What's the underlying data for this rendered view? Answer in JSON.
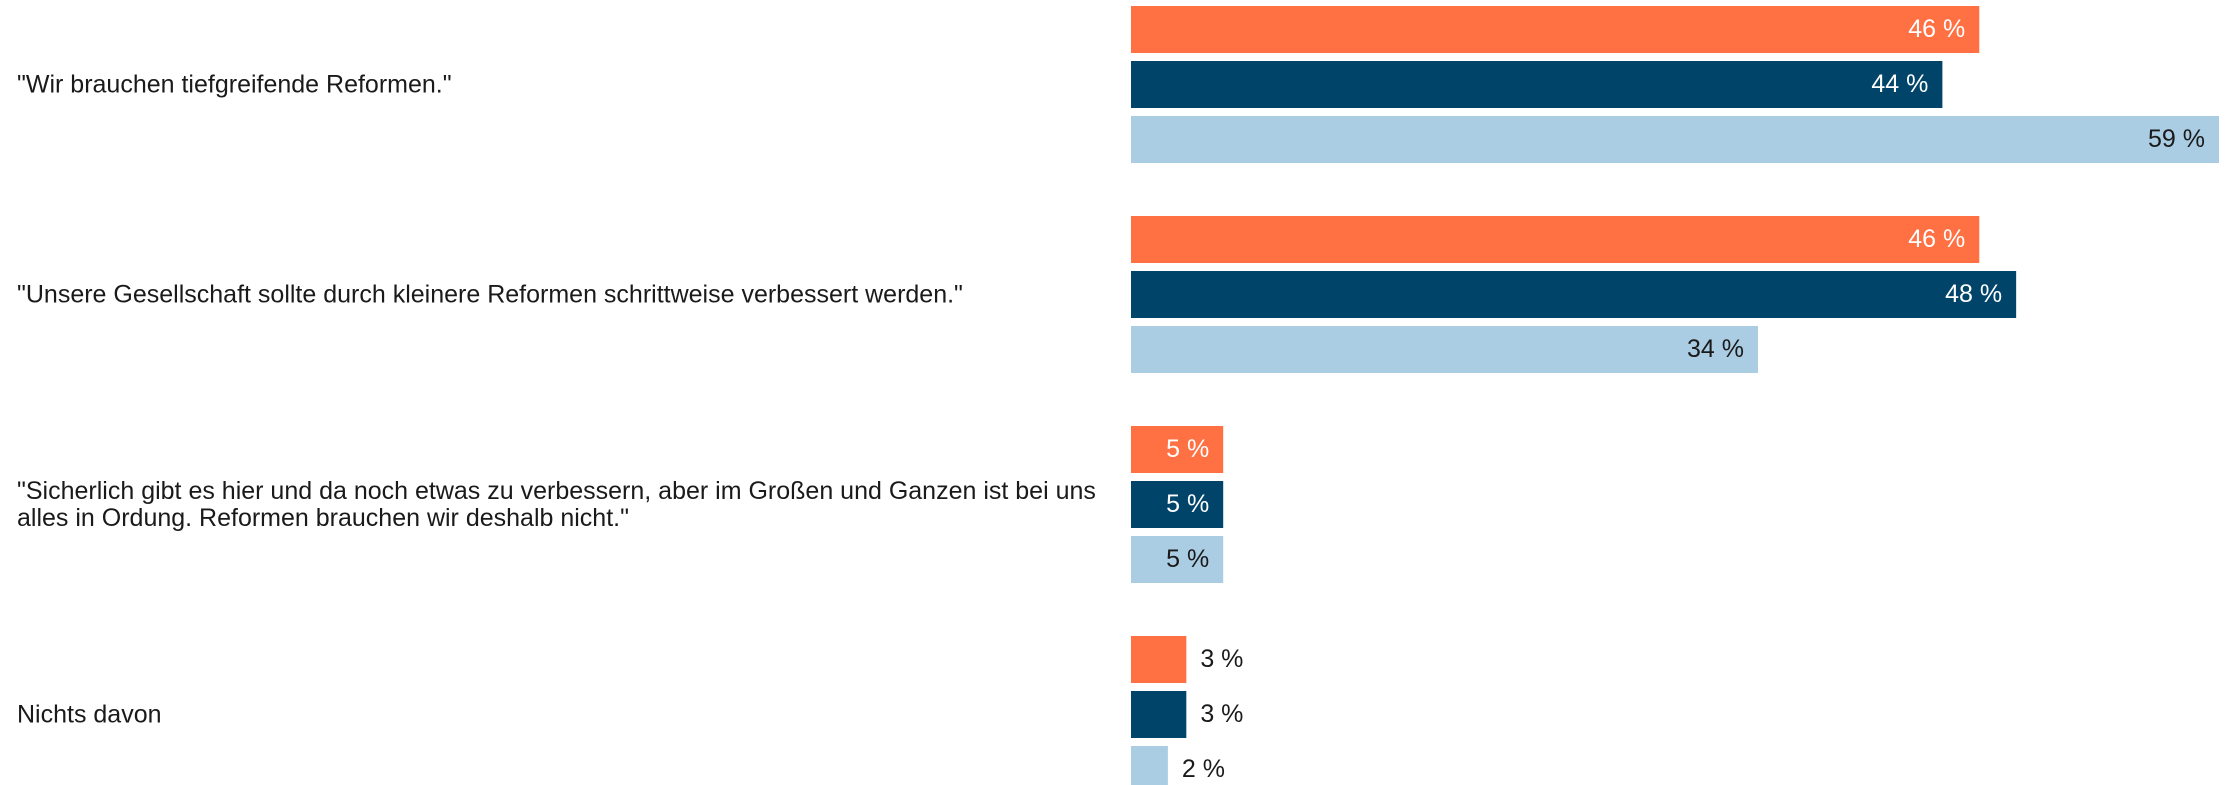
{
  "chart_data": {
    "type": "bar",
    "orientation": "horizontal",
    "categories": [
      "\"Wir brauchen tiefgreifende Reformen.\"",
      "\"Unsere Gesellschaft sollte durch kleinere Reformen schrittweise verbessert werden.\"",
      "\"Sicherlich gibt es hier und da noch etwas zu verbessern, aber im Großen und Ganzen ist bei uns alles in Ordung. Reformen brauchen wir deshalb nicht.\"",
      "Nichts davon"
    ],
    "series": [
      {
        "color": "#ff7043",
        "values": [
          46,
          46,
          5,
          3
        ],
        "value_labels": [
          "46 %",
          "46 %",
          "5 %",
          "3 %"
        ]
      },
      {
        "color": "#00446a",
        "values": [
          44,
          48,
          5,
          3
        ],
        "value_labels": [
          "44 %",
          "48 %",
          "5 %",
          "3 %"
        ]
      },
      {
        "color": "#abcde4",
        "values": [
          59,
          34,
          5,
          2
        ],
        "value_labels": [
          "59 %",
          "34 %",
          "5 %",
          "2 %"
        ]
      }
    ]
  }
}
